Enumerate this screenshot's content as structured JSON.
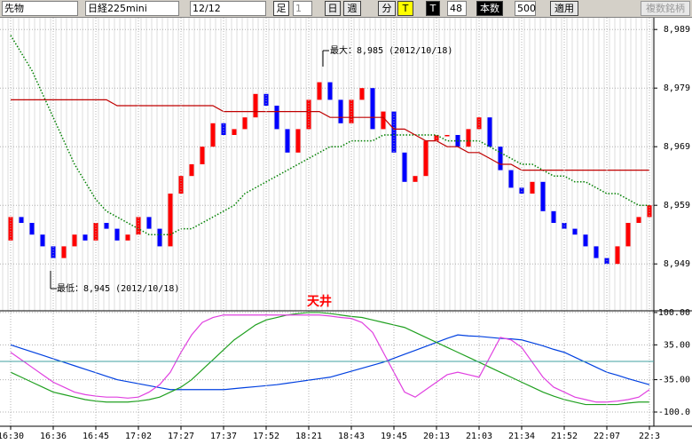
{
  "toolbar": {
    "market": "先物",
    "symbol": "日経225mini",
    "contract": "12/12",
    "bar_label": "足",
    "interval": "1",
    "buttons": [
      "日",
      "週",
      "分",
      "T"
    ],
    "t_button": "T",
    "count": "48",
    "count_label": "本数",
    "count2": "500",
    "apply": "適用",
    "multi": "複数銘柄"
  },
  "chart_data": [
    {
      "type": "candlestick",
      "categories": [
        "16:30",
        null,
        null,
        null,
        "16:36",
        null,
        null,
        null,
        "16:45",
        null,
        null,
        null,
        "17:02",
        null,
        null,
        null,
        "17:27",
        null,
        null,
        null,
        "17:37",
        null,
        null,
        null,
        "17:52",
        null,
        null,
        null,
        "18:21",
        null,
        null,
        null,
        "18:43",
        null,
        null,
        null,
        "19:45",
        null,
        null,
        null,
        "20:13",
        null,
        null,
        null,
        "21:03",
        null,
        null,
        null,
        "21:34",
        null,
        null,
        null,
        "21:52",
        null,
        null,
        null,
        "22:07",
        null,
        null,
        null,
        "22:3"
      ],
      "open": [
        8953,
        8957,
        8956,
        8954,
        8952,
        8950,
        8952,
        8954,
        8953,
        8956,
        8955,
        8953,
        8954,
        8957,
        8955,
        8952,
        8961,
        8964,
        8966,
        8969,
        8973,
        8971,
        8972,
        8974,
        8978,
        8976,
        8972,
        8968,
        8972,
        8977,
        8980,
        8977,
        8973,
        8977,
        8979,
        8972,
        8975,
        8968,
        8963,
        8964,
        8970,
        8971,
        8971,
        8969,
        8972,
        8974,
        8969,
        8965,
        8962,
        8961,
        8963,
        8958,
        8956,
        8955,
        8954,
        8952,
        8950,
        8949,
        8952,
        8956,
        8957
      ],
      "close": [
        8957,
        8956,
        8954,
        8952,
        8950,
        8952,
        8954,
        8953,
        8956,
        8955,
        8953,
        8954,
        8957,
        8955,
        8952,
        8961,
        8964,
        8966,
        8969,
        8973,
        8971,
        8972,
        8974,
        8978,
        8976,
        8972,
        8968,
        8972,
        8977,
        8980,
        8977,
        8973,
        8977,
        8979,
        8972,
        8975,
        8968,
        8963,
        8964,
        8970,
        8971,
        8971,
        8969,
        8972,
        8974,
        8969,
        8965,
        8962,
        8961,
        8963,
        8958,
        8956,
        8955,
        8954,
        8952,
        8950,
        8949,
        8952,
        8956,
        8957,
        8959
      ],
      "up_color": "#ff0000",
      "down_color": "#0000ff",
      "series": [
        {
          "color": "#008000",
          "values": [
            8988,
            8985,
            8982,
            8978,
            8974,
            8970,
            8966,
            8963,
            8960,
            8958,
            8957,
            8956,
            8955,
            8954,
            8954,
            8954,
            8955,
            8955,
            8956,
            8957,
            8958,
            8959,
            8961,
            8962,
            8963,
            8964,
            8965,
            8966,
            8967,
            8968,
            8969,
            8969,
            8970,
            8970,
            8970,
            8971,
            8971,
            8971,
            8971,
            8971,
            8971,
            8970,
            8970,
            8970,
            8970,
            8969,
            8968,
            8967,
            8966,
            8966,
            8965,
            8964,
            8964,
            8963,
            8963,
            8962,
            8961,
            8961,
            8960,
            8959,
            8959
          ]
        },
        {
          "color": "#c00000",
          "values": [
            8977,
            8977,
            8977,
            8977,
            8977,
            8977,
            8977,
            8977,
            8977,
            8977,
            8976,
            8976,
            8976,
            8976,
            8976,
            8976,
            8976,
            8976,
            8976,
            8976,
            8975,
            8975,
            8975,
            8975,
            8975,
            8975,
            8975,
            8975,
            8975,
            8975,
            8974,
            8974,
            8974,
            8974,
            8974,
            8974,
            8972,
            8972,
            8971,
            8970,
            8970,
            8969,
            8969,
            8968,
            8968,
            8967,
            8966,
            8966,
            8965,
            8965,
            8965,
            8965,
            8965,
            8965,
            8965,
            8965,
            8965,
            8965,
            8965,
            8965,
            8965
          ]
        }
      ],
      "ylim": [
        8941,
        8991
      ],
      "yticks": [
        {
          "value": 8949,
          "label": "8,949"
        },
        {
          "value": 8959,
          "label": "8,959"
        },
        {
          "value": 8969,
          "label": "8,969"
        },
        {
          "value": 8979,
          "label": "8,979"
        },
        {
          "value": 8989,
          "label": "8,989"
        }
      ],
      "annotations": [
        "最大：8,985 (2012/10/18)",
        "最低：8,945 (2012/10/18)"
      ]
    },
    {
      "type": "line",
      "series": [
        {
          "color": "#0040e0",
          "values": [
            35,
            28,
            21,
            14,
            7,
            0,
            -7,
            -14,
            -21,
            -28,
            -35,
            -39,
            -43,
            -47,
            -51,
            -55,
            -55,
            -55,
            -55,
            -55,
            -55,
            -53,
            -51,
            -49,
            -47,
            -45,
            -42,
            -39,
            -36,
            -33,
            -30,
            -24,
            -18,
            -12,
            -6,
            0,
            8,
            16,
            24,
            32,
            40,
            48,
            55,
            53,
            52,
            50,
            48,
            47,
            45,
            39,
            33,
            26,
            20,
            10,
            0,
            -10,
            -20,
            -26,
            -33,
            -39,
            -45
          ]
        },
        {
          "color": "#20a020",
          "values": [
            -20,
            -30,
            -40,
            -50,
            -60,
            -65,
            -70,
            -75,
            -78,
            -80,
            -80,
            -80,
            -78,
            -75,
            -70,
            -60,
            -50,
            -35,
            -15,
            5,
            25,
            45,
            60,
            75,
            85,
            90,
            95,
            98,
            100,
            100,
            98,
            95,
            92,
            90,
            85,
            80,
            75,
            70,
            60,
            50,
            40,
            30,
            20,
            10,
            0,
            -10,
            -20,
            -30,
            -40,
            -50,
            -60,
            -68,
            -75,
            -80,
            -85,
            -85,
            -85,
            -85,
            -82,
            -80,
            -80
          ]
        },
        {
          "color": "#e040e0",
          "values": [
            20,
            5,
            -10,
            -25,
            -40,
            -50,
            -60,
            -65,
            -68,
            -70,
            -70,
            -72,
            -70,
            -60,
            -45,
            -20,
            20,
            55,
            80,
            90,
            95,
            95,
            95,
            95,
            95,
            95,
            95,
            95,
            95,
            95,
            93,
            90,
            88,
            80,
            60,
            20,
            -20,
            -60,
            -70,
            -55,
            -40,
            -25,
            -20,
            -25,
            -30,
            10,
            50,
            45,
            30,
            0,
            -30,
            -50,
            -60,
            -70,
            -75,
            -80,
            -80,
            -78,
            -75,
            -70,
            -55
          ]
        }
      ],
      "ylim": [
        -125,
        107
      ],
      "yticks": [
        {
          "value": 100,
          "label": "100.00"
        },
        {
          "value": 35,
          "label": "35.00"
        },
        {
          "value": -35,
          "label": "-35.00"
        },
        {
          "value": -100,
          "label": "-100.0"
        }
      ],
      "annotation": "天井"
    }
  ]
}
